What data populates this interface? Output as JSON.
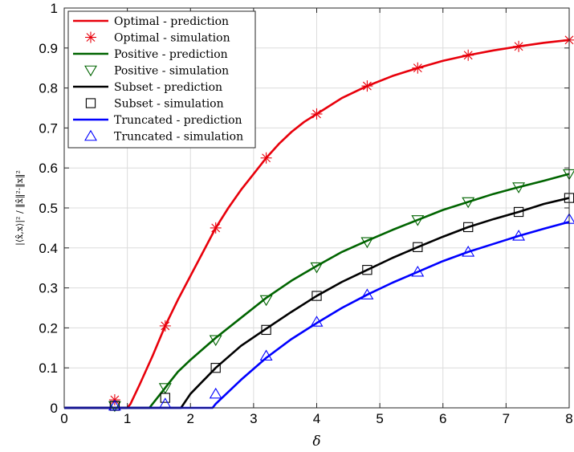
{
  "chart_data": {
    "type": "line",
    "title": "",
    "xlabel": "δ",
    "ylabel": "|⟨x̂,x⟩|² / ‖x̂‖²·‖x‖²",
    "xlim": [
      0,
      8
    ],
    "ylim": [
      0,
      1
    ],
    "xticks": [
      0,
      1,
      2,
      3,
      4,
      5,
      6,
      7,
      8
    ],
    "yticks": [
      0,
      0.1,
      0.2,
      0.3,
      0.4,
      0.5,
      0.6,
      0.7,
      0.8,
      0.9,
      1
    ],
    "ytick_labels": [
      "0",
      "0.1",
      "0.2",
      "0.3",
      "0.4",
      "0.5",
      "0.6",
      "0.7",
      "0.8",
      "0.9",
      "1"
    ],
    "grid": true,
    "legend_position": "top-left",
    "series": [
      {
        "name": "Optimal - prediction",
        "kind": "line",
        "color": "#e8000b",
        "x": [
          0,
          1,
          1.05,
          1.2,
          1.4,
          1.6,
          1.8,
          2.0,
          2.2,
          2.4,
          2.6,
          2.8,
          3.0,
          3.2,
          3.4,
          3.6,
          3.8,
          4.0,
          4.4,
          4.8,
          5.2,
          5.6,
          6.0,
          6.4,
          6.8,
          7.2,
          7.6,
          8.0
        ],
        "y": [
          0,
          0,
          0.01,
          0.06,
          0.13,
          0.205,
          0.27,
          0.33,
          0.39,
          0.45,
          0.5,
          0.545,
          0.585,
          0.625,
          0.66,
          0.69,
          0.715,
          0.735,
          0.775,
          0.805,
          0.83,
          0.85,
          0.868,
          0.882,
          0.894,
          0.904,
          0.913,
          0.92
        ]
      },
      {
        "name": "Optimal - simulation",
        "kind": "marker",
        "marker": "star",
        "color": "#e8000b",
        "x": [
          0.8,
          1.6,
          2.4,
          3.2,
          4.0,
          4.8,
          5.6,
          6.4,
          7.2,
          8.0
        ],
        "y": [
          0.02,
          0.205,
          0.45,
          0.625,
          0.735,
          0.805,
          0.85,
          0.882,
          0.904,
          0.92
        ]
      },
      {
        "name": "Positive - prediction",
        "kind": "line",
        "color": "#006400",
        "x": [
          0,
          1.35,
          1.5,
          1.6,
          1.8,
          2.0,
          2.4,
          2.8,
          3.2,
          3.6,
          4.0,
          4.4,
          4.8,
          5.2,
          5.6,
          6.0,
          6.4,
          6.8,
          7.2,
          7.6,
          8.0
        ],
        "y": [
          0,
          0,
          0.03,
          0.05,
          0.09,
          0.12,
          0.175,
          0.225,
          0.275,
          0.318,
          0.355,
          0.39,
          0.418,
          0.445,
          0.47,
          0.495,
          0.515,
          0.535,
          0.552,
          0.568,
          0.585
        ]
      },
      {
        "name": "Positive - simulation",
        "kind": "marker",
        "marker": "triangle-down",
        "color": "#006400",
        "x": [
          0.8,
          1.6,
          2.4,
          3.2,
          4.0,
          4.8,
          5.6,
          6.4,
          7.2,
          8.0
        ],
        "y": [
          0.005,
          0.05,
          0.17,
          0.27,
          0.352,
          0.415,
          0.47,
          0.515,
          0.552,
          0.585
        ]
      },
      {
        "name": "Subset - prediction",
        "kind": "line",
        "color": "#000000",
        "x": [
          0,
          1.85,
          2.0,
          2.4,
          2.8,
          3.2,
          3.6,
          4.0,
          4.4,
          4.8,
          5.2,
          5.6,
          6.0,
          6.4,
          6.8,
          7.2,
          7.6,
          8.0
        ],
        "y": [
          0,
          0,
          0.035,
          0.1,
          0.155,
          0.198,
          0.24,
          0.28,
          0.315,
          0.345,
          0.375,
          0.402,
          0.428,
          0.452,
          0.472,
          0.49,
          0.51,
          0.525
        ]
      },
      {
        "name": "Subset - simulation",
        "kind": "marker",
        "marker": "square",
        "color": "#000000",
        "x": [
          0.8,
          1.6,
          2.4,
          3.2,
          4.0,
          4.8,
          5.6,
          6.4,
          7.2,
          8.0
        ],
        "y": [
          0.005,
          0.025,
          0.1,
          0.195,
          0.28,
          0.345,
          0.402,
          0.452,
          0.49,
          0.525
        ]
      },
      {
        "name": "Truncated - prediction",
        "kind": "line",
        "color": "#0000ff",
        "x": [
          0,
          2.35,
          2.4,
          2.8,
          3.2,
          3.6,
          4.0,
          4.4,
          4.8,
          5.2,
          5.6,
          6.0,
          6.4,
          6.8,
          7.2,
          7.6,
          8.0
        ],
        "y": [
          0,
          0,
          0.01,
          0.07,
          0.125,
          0.172,
          0.212,
          0.25,
          0.283,
          0.313,
          0.34,
          0.367,
          0.39,
          0.41,
          0.43,
          0.448,
          0.465
        ]
      },
      {
        "name": "Truncated - simulation",
        "kind": "marker",
        "marker": "triangle-up",
        "color": "#0000ff",
        "x": [
          0.8,
          1.6,
          2.4,
          3.2,
          4.0,
          4.8,
          5.6,
          6.4,
          7.2,
          8.0
        ],
        "y": [
          0.005,
          0.01,
          0.035,
          0.13,
          0.215,
          0.283,
          0.34,
          0.39,
          0.43,
          0.472
        ]
      }
    ]
  }
}
